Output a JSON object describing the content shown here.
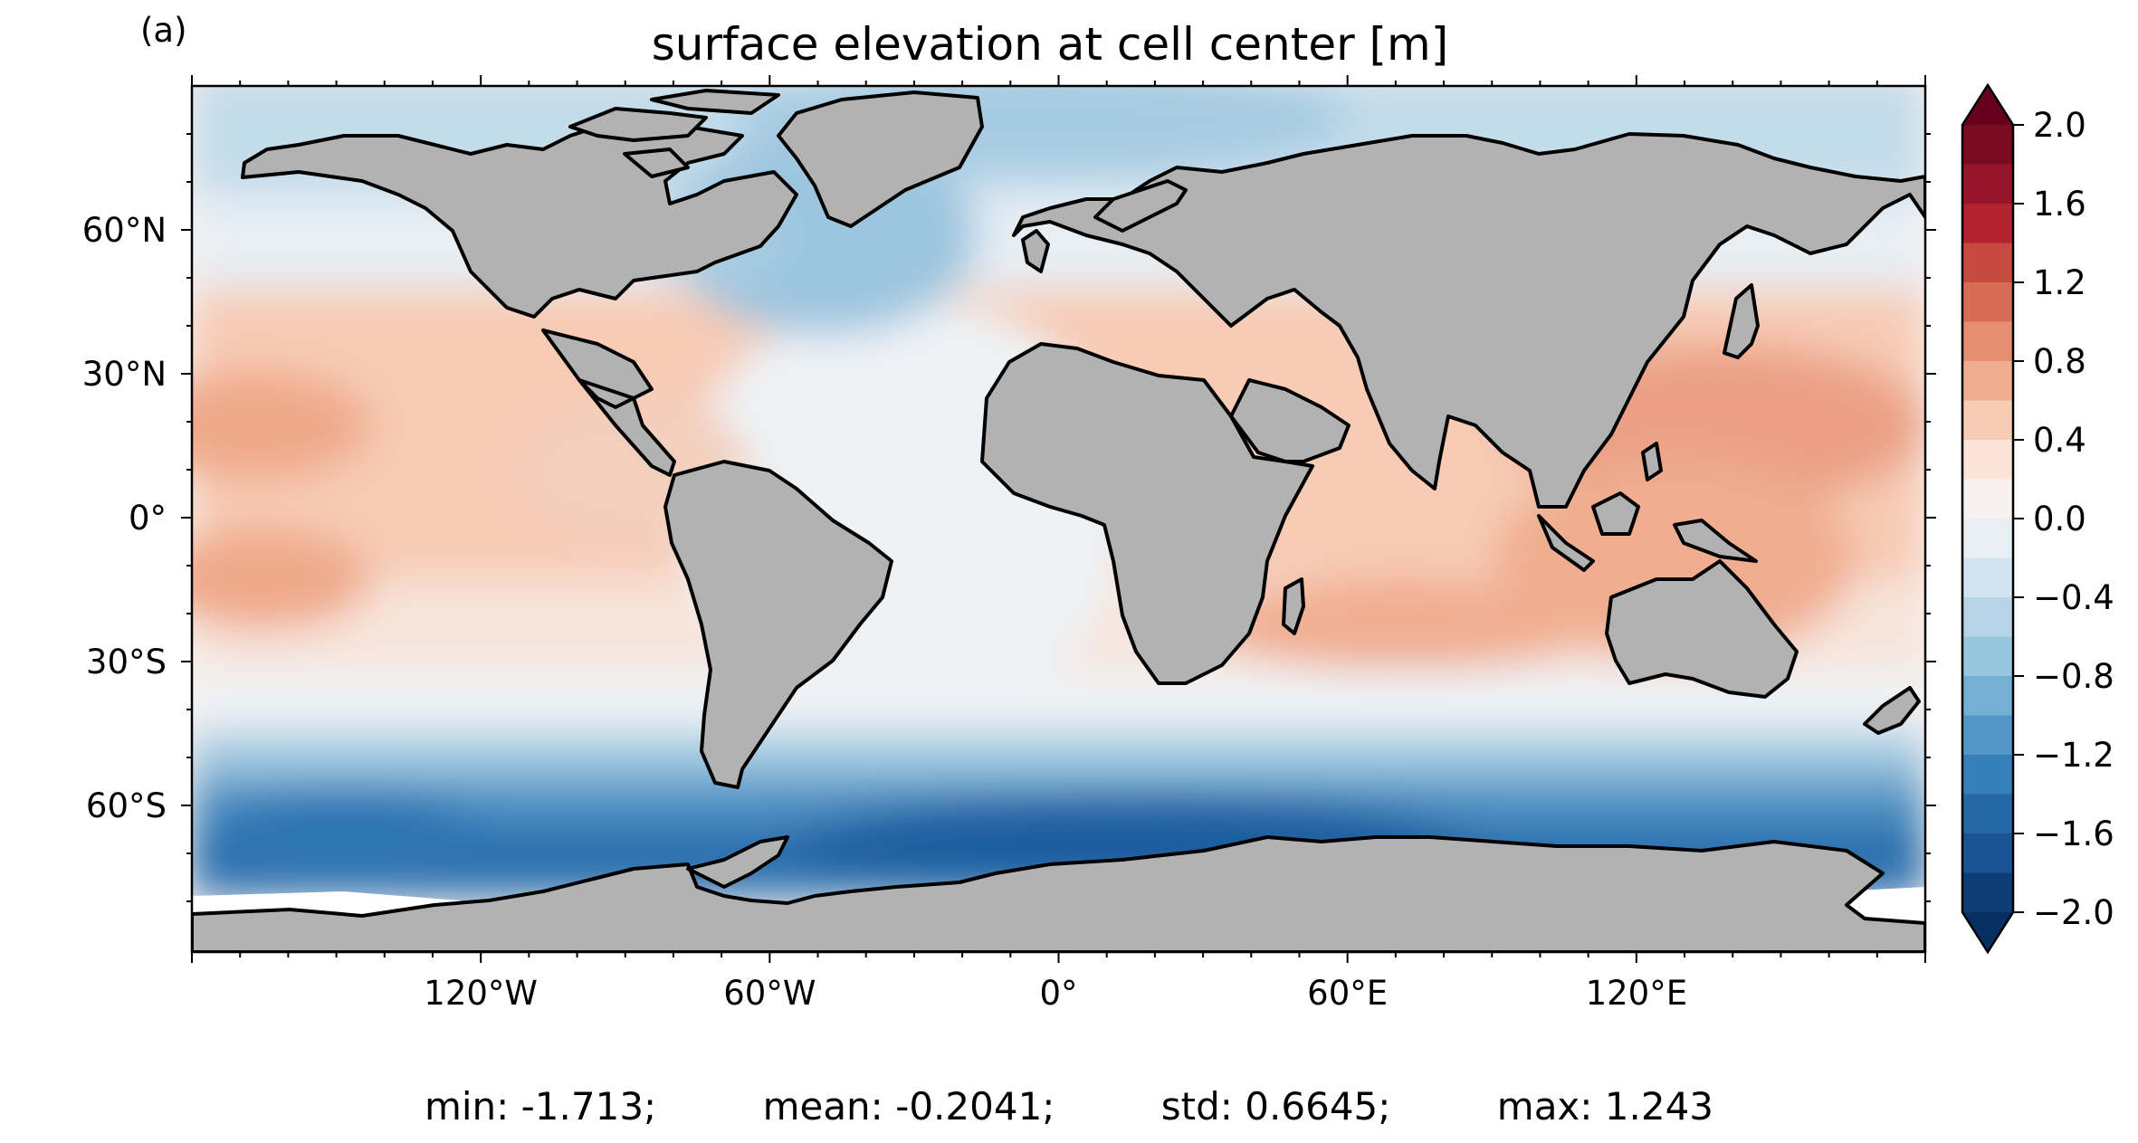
{
  "panel_label": "(a)",
  "title": "surface elevation at cell center [m]",
  "lat_ticks": [
    "60°N",
    "30°N",
    "0°",
    "30°S",
    "60°S"
  ],
  "lon_ticks": [
    "120°W",
    "60°W",
    "0°",
    "60°E",
    "120°E"
  ],
  "colorbar": {
    "ticks": [
      "2.0",
      "1.6",
      "1.2",
      "0.8",
      "0.4",
      "0.0",
      "−0.4",
      "−0.8",
      "−1.2",
      "−1.6",
      "−2.0"
    ],
    "colors": [
      "#7a0c22",
      "#98142a",
      "#b2222f",
      "#c64a40",
      "#d86b54",
      "#e68e70",
      "#f0ad90",
      "#f7cbb4",
      "#fbe3d7",
      "#f7f0ee",
      "#e7eef4",
      "#d1e4ef",
      "#b6d6e8",
      "#97c6df",
      "#74afd4",
      "#5297c7",
      "#3580ba",
      "#2468a8",
      "#1a5395",
      "#0e3d75"
    ],
    "over_color": "#67001f",
    "under_color": "#053061"
  },
  "stats": {
    "min": "min: -1.713;",
    "mean": "mean: -0.2041;",
    "std": "std: 0.6645;",
    "max": "max: 1.243"
  },
  "map_colors": {
    "land": "#b2b2b2",
    "ice": "#ffffff",
    "coastline": "#000000"
  }
}
